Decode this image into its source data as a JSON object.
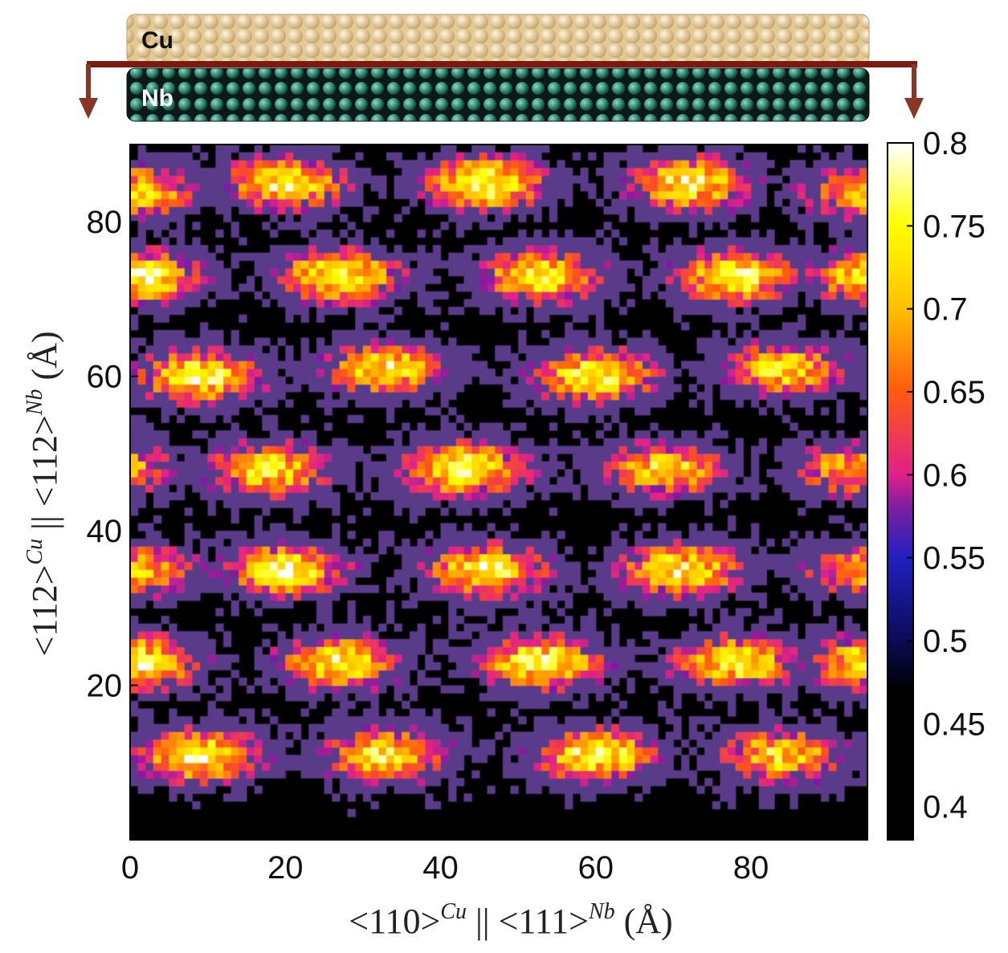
{
  "schematic": {
    "top_label": "Cu",
    "bottom_label": "Nb",
    "top_color": "#e8d3a3",
    "bottom_color": "#2f8f7a",
    "arrow_color": "#7a1a10"
  },
  "chart_data": {
    "type": "heatmap",
    "title": "",
    "xlabel": {
      "main": "<110>",
      "sup1": "Cu",
      "mid": " || <111>",
      "sup2": "Nb",
      "unit": " (Å)"
    },
    "ylabel": {
      "main": "<112>",
      "sup1": "Cu",
      "mid": " || <112>",
      "sup2": "Nb",
      "unit": " (Å)"
    },
    "xlim": [
      0,
      95
    ],
    "ylim": [
      0,
      90
    ],
    "xticks": [
      0,
      20,
      40,
      60,
      80
    ],
    "yticks": [
      20,
      40,
      60,
      80
    ],
    "xtick_labels": [
      "0",
      "20",
      "40",
      "60",
      "80"
    ],
    "ytick_labels": [
      "20",
      "40",
      "60",
      "80"
    ],
    "colorbar": {
      "min": 0.38,
      "max": 0.8,
      "ticks": [
        0.4,
        0.45,
        0.5,
        0.55,
        0.6,
        0.65,
        0.7,
        0.75,
        0.8
      ],
      "tick_labels": [
        "0.4",
        "0.45",
        "0.5",
        "0.55",
        "0.6",
        "0.65",
        "0.7",
        "0.75",
        "0.8"
      ],
      "colormap": [
        [
          0.38,
          "#000000"
        ],
        [
          0.47,
          "#000000"
        ],
        [
          0.5,
          "#0b0b55"
        ],
        [
          0.55,
          "#2020c0"
        ],
        [
          0.58,
          "#7a1fa0"
        ],
        [
          0.6,
          "#e0208a"
        ],
        [
          0.65,
          "#ff5a10"
        ],
        [
          0.7,
          "#ffc000"
        ],
        [
          0.75,
          "#ffff00"
        ],
        [
          0.8,
          "#ffffff"
        ]
      ]
    },
    "hotspots": [
      {
        "x": 1,
        "y": 84,
        "v": 0.72
      },
      {
        "x": 20,
        "y": 85,
        "v": 0.75
      },
      {
        "x": 46,
        "y": 85,
        "v": 0.77
      },
      {
        "x": 72,
        "y": 85,
        "v": 0.75
      },
      {
        "x": 94,
        "y": 84,
        "v": 0.7
      },
      {
        "x": 1,
        "y": 73,
        "v": 0.76
      },
      {
        "x": 27,
        "y": 73,
        "v": 0.76
      },
      {
        "x": 53,
        "y": 73,
        "v": 0.75
      },
      {
        "x": 78,
        "y": 73,
        "v": 0.75
      },
      {
        "x": 9,
        "y": 60,
        "v": 0.76
      },
      {
        "x": 33,
        "y": 61,
        "v": 0.74
      },
      {
        "x": 60,
        "y": 60,
        "v": 0.76
      },
      {
        "x": 84,
        "y": 61,
        "v": 0.73
      },
      {
        "x": 18,
        "y": 48,
        "v": 0.74
      },
      {
        "x": 43,
        "y": 48,
        "v": 0.77
      },
      {
        "x": 69,
        "y": 48,
        "v": 0.73
      },
      {
        "x": 93,
        "y": 48,
        "v": 0.7
      },
      {
        "x": 1,
        "y": 35,
        "v": 0.7
      },
      {
        "x": 20,
        "y": 35,
        "v": 0.75
      },
      {
        "x": 46,
        "y": 35,
        "v": 0.75
      },
      {
        "x": 71,
        "y": 35,
        "v": 0.75
      },
      {
        "x": 94,
        "y": 35,
        "v": 0.68
      },
      {
        "x": 1,
        "y": 23,
        "v": 0.76
      },
      {
        "x": 27,
        "y": 23,
        "v": 0.75
      },
      {
        "x": 53,
        "y": 23,
        "v": 0.76
      },
      {
        "x": 78,
        "y": 23,
        "v": 0.75
      },
      {
        "x": 9,
        "y": 11,
        "v": 0.76
      },
      {
        "x": 33,
        "y": 11,
        "v": 0.74
      },
      {
        "x": 60,
        "y": 11,
        "v": 0.76
      },
      {
        "x": 84,
        "y": 11,
        "v": 0.73
      }
    ]
  }
}
